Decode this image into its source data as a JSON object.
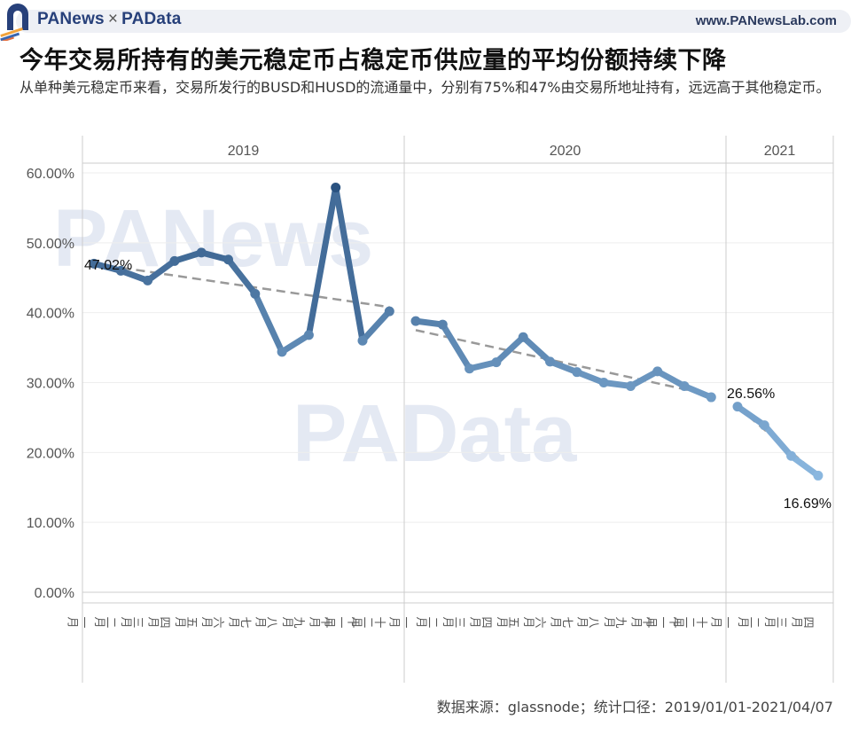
{
  "header": {
    "brand_left": "PANews",
    "brand_sep": "×",
    "brand_right": "PAData",
    "site_url": "www.PANewsLab.com"
  },
  "title": "今年交易所持有的美元稳定币占稳定币供应量的平均份额持续下降",
  "subtitle": "从单种美元稳定币来看，交易所发行的BUSD和HUSD的流通量中，分别有75%和47%由交易所地址持有，远远高于其他稳定币。",
  "footer": "数据来源：glassnode；统计口径：2019/01/01-2021/04/07",
  "watermarks": [
    "PANews",
    "PAData"
  ],
  "colors": {
    "line_dark": "#2c5580",
    "line_light": "#7fb0d8",
    "trend": "#999999",
    "grid": "#eeeeee",
    "panel_border": "#cccccc"
  },
  "chart_data": {
    "type": "line",
    "title": "今年交易所持有的美元稳定币占稳定币供应量的平均份额持续下降",
    "xlabel": "",
    "ylabel": "",
    "ylim": [
      0,
      60
    ],
    "yticks": [
      "0.00%",
      "10.00%",
      "20.00%",
      "30.00%",
      "40.00%",
      "50.00%",
      "60.00%"
    ],
    "grid": true,
    "legend": "none",
    "panels": [
      {
        "year": "2019",
        "categories": [
          "一月",
          "二月",
          "三月",
          "四月",
          "五月",
          "六月",
          "七月",
          "八月",
          "九月",
          "十月",
          "十一月",
          "十二月"
        ],
        "values": [
          47.02,
          46.0,
          44.6,
          47.4,
          48.6,
          47.6,
          42.7,
          34.4,
          36.8,
          57.9,
          36.0,
          40.2
        ],
        "trend": [
          47.0,
          40.8
        ]
      },
      {
        "year": "2020",
        "categories": [
          "一月",
          "二月",
          "三月",
          "四月",
          "五月",
          "六月",
          "七月",
          "八月",
          "九月",
          "十月",
          "十一月",
          "十二月"
        ],
        "values": [
          38.8,
          38.3,
          32.0,
          32.9,
          36.5,
          33.0,
          31.5,
          30.0,
          29.5,
          31.6,
          29.5,
          27.9
        ],
        "trend": [
          37.5,
          28.2
        ]
      },
      {
        "year": "2021",
        "categories": [
          "一月",
          "二月",
          "三月",
          "四月"
        ],
        "values": [
          26.56,
          23.9,
          19.5,
          16.69
        ],
        "trend": [
          26.5,
          16.8
        ]
      }
    ],
    "annotations": [
      "47.02%",
      "26.56%",
      "16.69%"
    ]
  }
}
